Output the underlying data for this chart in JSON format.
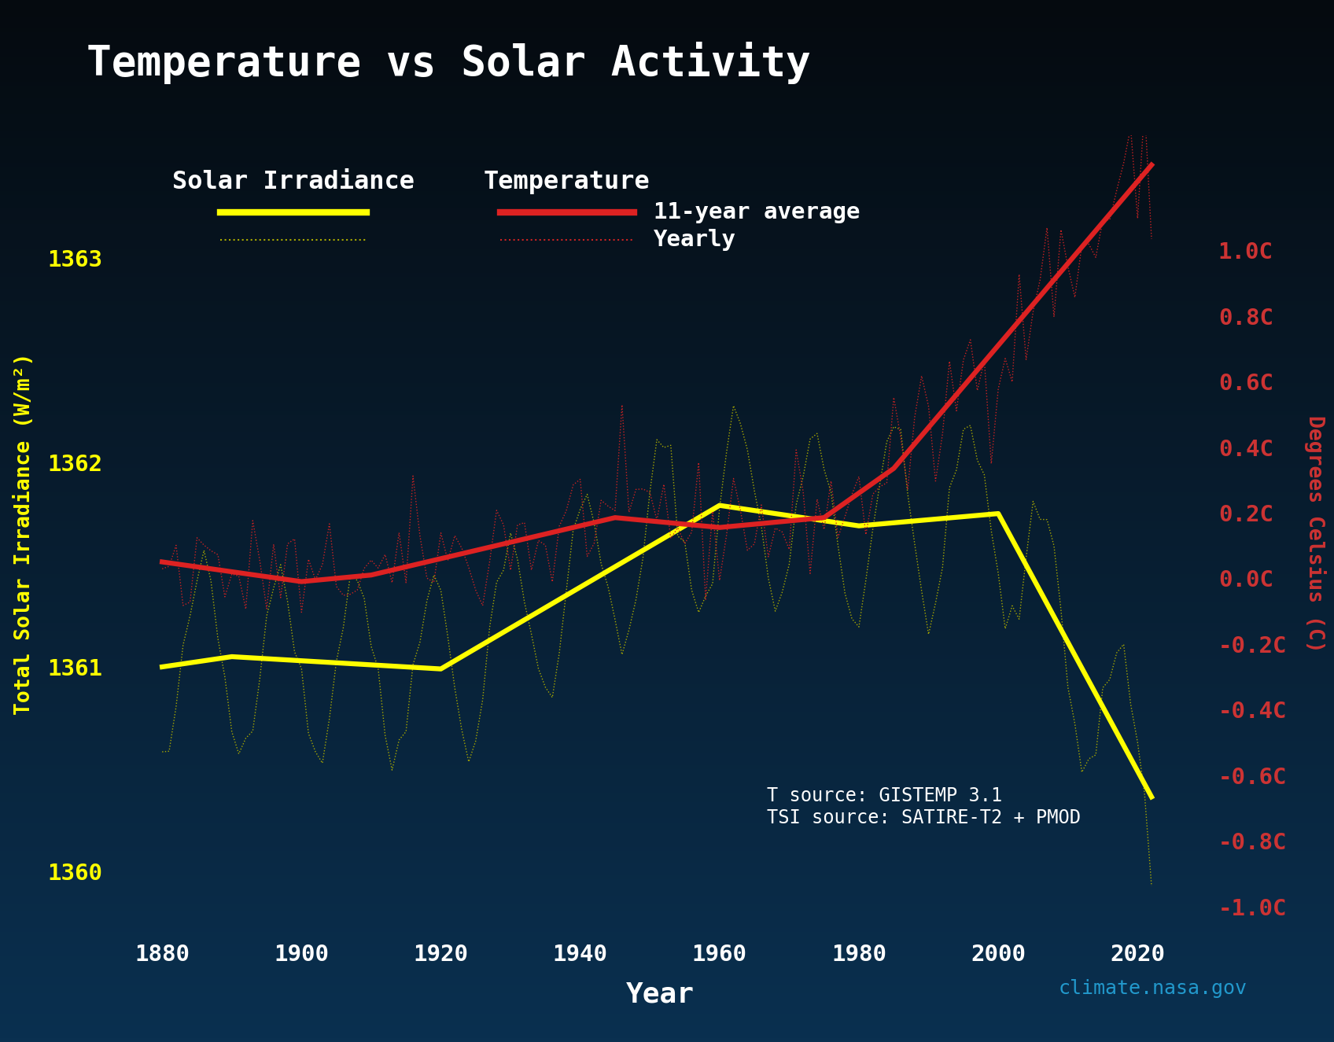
{
  "title": "Temperature vs Solar Activity",
  "xlabel": "Year",
  "ylabel_left": "Total Solar Irradiance (W/m²)",
  "ylabel_right": "Degrees Celsius (C)",
  "bg_outer": "#050a0f",
  "bg_gradient_top": "#050a0f",
  "bg_gradient_bot": "#0a3050",
  "title_color": "#ffffff",
  "solar_11yr_color": "#ffff00",
  "solar_yearly_color": "#aaaa00",
  "temp_11yr_color": "#dd2222",
  "temp_yearly_color": "#cc2222",
  "tick_color_x": "#ffffff",
  "tick_color_left": "#ffff00",
  "tick_color_right": "#cc3333",
  "label_color_left": "#ffff00",
  "label_color_right": "#cc3333",
  "label_color_x": "#ffffff",
  "source_color": "#ffffff",
  "watermark_color": "#2299cc",
  "ylim_left": [
    1359.7,
    1363.6
  ],
  "ylim_right": [
    -1.08,
    1.35
  ],
  "xlim": [
    1873,
    2030
  ],
  "yticks_left": [
    1360,
    1361,
    1362,
    1363
  ],
  "yticks_right": [
    -1.0,
    -0.8,
    -0.6,
    -0.4,
    -0.2,
    0.0,
    0.2,
    0.4,
    0.6,
    0.8,
    1.0
  ],
  "xticks": [
    1880,
    1900,
    1920,
    1940,
    1960,
    1980,
    2000,
    2020
  ],
  "source_text": "T source: GISTEMP 3.1\nTSI source: SATIRE-T2 + PMOD",
  "watermark": "climate.nasa.gov",
  "legend_solar": "Solar Irradiance",
  "legend_temp": "Temperature",
  "legend_11yr": "11-year average",
  "legend_yearly": "Yearly"
}
